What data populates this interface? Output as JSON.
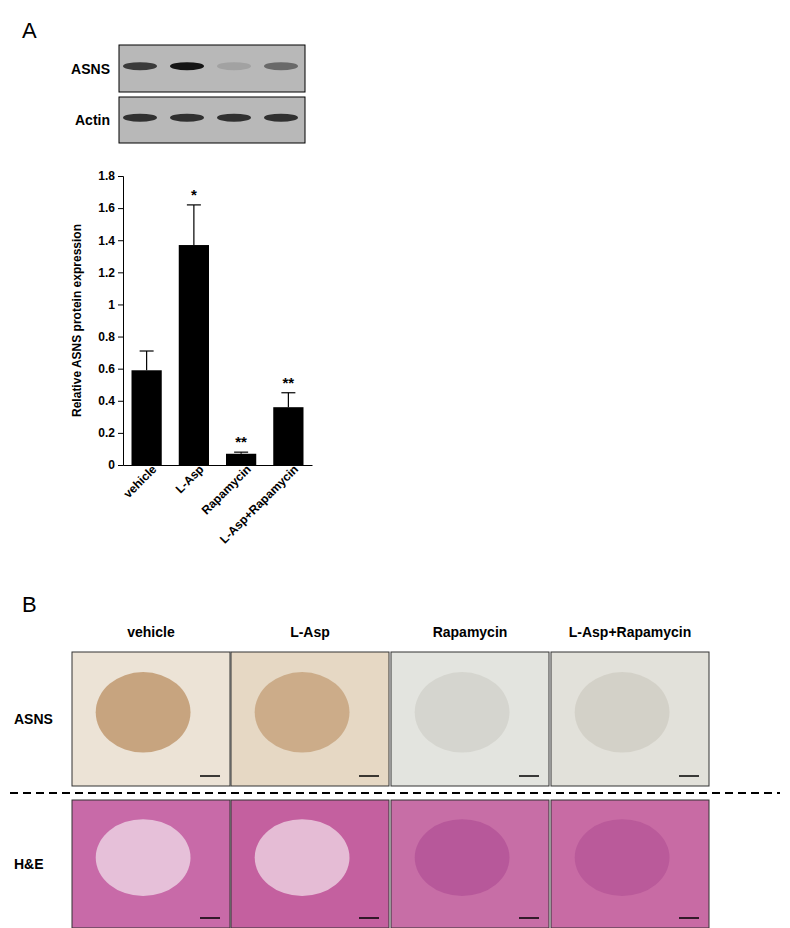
{
  "chart_data": {
    "type": "bar",
    "categories": [
      "vehicle",
      "L-Asp",
      "Rapamycin",
      "L-Asp+Rapamycin"
    ],
    "values": [
      0.59,
      1.37,
      0.07,
      0.36
    ],
    "errors": [
      0.12,
      0.25,
      0.01,
      0.09
    ],
    "annotations": [
      "",
      "*",
      "**",
      "**"
    ],
    "color": "#000000",
    "y_label": "Relative ASNS protein expression",
    "ylim": [
      0,
      1.8
    ],
    "yticks": [
      0,
      0.2,
      0.4,
      0.6,
      0.8,
      1,
      1.2,
      1.4,
      1.6,
      1.8
    ],
    "grid": false
  },
  "figure": {
    "panel_a": "A",
    "panel_b": "B",
    "blot_labels": [
      "ASNS",
      "Actin"
    ],
    "columns": [
      "vehicle",
      "L-Asp",
      "Rapamycin",
      "L-Asp+Rapamycin"
    ],
    "rows": [
      "ASNS",
      "H&E"
    ]
  }
}
